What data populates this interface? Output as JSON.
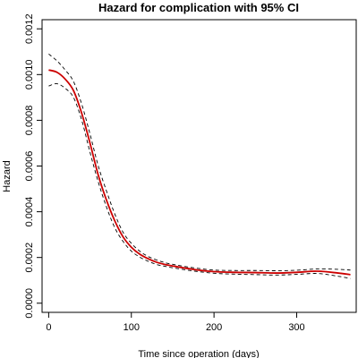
{
  "chart_data": {
    "type": "line",
    "title": "Hazard for complication with 95% CI",
    "xlabel": "Time since operation (days)",
    "ylabel": "Hazard",
    "xlim": [
      -8,
      372
    ],
    "ylim": [
      -4e-05,
      0.00124
    ],
    "x_ticks": [
      0,
      100,
      200,
      300
    ],
    "y_ticks": [
      0.0,
      0.0002,
      0.0004,
      0.0006,
      0.0008,
      0.001,
      0.0012
    ],
    "y_tick_labels": [
      "0.0000",
      "0.0002",
      "0.0004",
      "0.0006",
      "0.0008",
      "0.0010",
      "0.0012"
    ],
    "colors": {
      "estimate": "#cc0000",
      "ci": "#000000"
    },
    "x": [
      0,
      10,
      20,
      30,
      40,
      50,
      60,
      70,
      80,
      90,
      100,
      110,
      120,
      130,
      140,
      150,
      175,
      200,
      225,
      250,
      275,
      300,
      325,
      350,
      365
    ],
    "series": [
      {
        "role": "estimate",
        "values": [
          0.00102,
          0.00101,
          0.00098,
          0.00093,
          0.00083,
          0.0007,
          0.00056,
          0.00045,
          0.00036,
          0.00029,
          0.000245,
          0.000215,
          0.000195,
          0.00018,
          0.00017,
          0.000163,
          0.000148,
          0.000138,
          0.000135,
          0.000134,
          0.000132,
          0.000135,
          0.00014,
          0.000132,
          0.000125
        ]
      },
      {
        "role": "upper",
        "values": [
          0.00109,
          0.00106,
          0.00102,
          0.00097,
          0.00087,
          0.00074,
          0.0006,
          0.00049,
          0.00039,
          0.00031,
          0.000262,
          0.000228,
          0.000205,
          0.00019,
          0.000178,
          0.00017,
          0.000155,
          0.000145,
          0.000143,
          0.000143,
          0.000142,
          0.000144,
          0.00015,
          0.000148,
          0.000145
        ]
      },
      {
        "role": "lower",
        "values": [
          0.00095,
          0.00096,
          0.00094,
          0.0009,
          0.0008,
          0.00066,
          0.00053,
          0.00042,
          0.00033,
          0.00027,
          0.000228,
          0.000202,
          0.000184,
          0.00017,
          0.000162,
          0.000155,
          0.000141,
          0.000131,
          0.000127,
          0.000125,
          0.000123,
          0.000126,
          0.00013,
          0.000118,
          0.000108
        ]
      }
    ]
  }
}
